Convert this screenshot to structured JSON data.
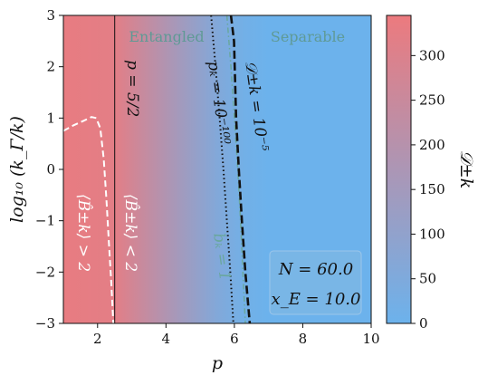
{
  "chart_data": {
    "type": "heatmap",
    "xlabel": "p",
    "ylabel": "log₁₀ (k_Γ/k)",
    "xlim": [
      1,
      10
    ],
    "ylim": [
      -3,
      3
    ],
    "x_ticks": [
      2,
      4,
      6,
      8,
      10
    ],
    "y_ticks": [
      -3,
      -2,
      -1,
      0,
      1,
      2,
      3
    ],
    "colorbar": {
      "label": "𝒟±k",
      "range": [
        0,
        345
      ],
      "ticks": [
        0,
        50,
        100,
        150,
        200,
        250,
        300
      ],
      "colors": {
        "low": "#6cb2ec",
        "high": "#ec7a7e"
      }
    },
    "colormap_profile": [
      {
        "p": 1.0,
        "value": 335
      },
      {
        "p": 2.5,
        "value": 320
      },
      {
        "p": 3.5,
        "value": 230
      },
      {
        "p": 4.5,
        "value": 140
      },
      {
        "p": 5.5,
        "value": 60
      },
      {
        "p": 6.3,
        "value": 15
      },
      {
        "p": 7.0,
        "value": 0
      },
      {
        "p": 10.0,
        "value": 0
      }
    ],
    "contours": [
      {
        "id": "p-vertical",
        "label": "p = 5/2",
        "style": "solid-thin",
        "color": "#111111",
        "points": [
          [
            2.5,
            -3
          ],
          [
            2.5,
            3
          ]
        ]
      },
      {
        "id": "bhat-2",
        "label_left": "⟨B̂±k⟩ > 2",
        "label_right": "⟨B̂±k⟩ < 2",
        "style": "dashed",
        "color": "#ffffff",
        "points": [
          [
            1.0,
            0.75
          ],
          [
            1.3,
            0.86
          ],
          [
            1.6,
            0.95
          ],
          [
            1.82,
            1.02
          ],
          [
            1.96,
            1.0
          ],
          [
            2.08,
            0.8
          ],
          [
            2.18,
            0.2
          ],
          [
            2.26,
            -0.6
          ],
          [
            2.33,
            -1.4
          ],
          [
            2.4,
            -2.2
          ],
          [
            2.46,
            -3.0
          ]
        ]
      },
      {
        "id": "pk-contour",
        "label": "pₖ = 10⁻¹⁰⁰",
        "style": "dotted",
        "color": "#111111",
        "points": [
          [
            5.32,
            3.0
          ],
          [
            5.45,
            2.0
          ],
          [
            5.57,
            1.0
          ],
          [
            5.68,
            0.0
          ],
          [
            5.78,
            -1.0
          ],
          [
            5.88,
            -2.0
          ],
          [
            5.97,
            -3.0
          ]
        ]
      },
      {
        "id": "bk-contour",
        "label": "bₖ = 1",
        "style": "dash-dot",
        "color": "#6aa79e",
        "points": [
          [
            5.78,
            3.0
          ],
          [
            5.9,
            2.0
          ],
          [
            6.0,
            1.0
          ],
          [
            6.1,
            0.0
          ],
          [
            6.18,
            -1.0
          ],
          [
            6.25,
            -2.0
          ],
          [
            6.32,
            -3.0
          ]
        ]
      },
      {
        "id": "d-contour",
        "label": "𝒟±k = 10⁻⁵",
        "style": "dashed-thick",
        "color": "#111111",
        "points": [
          [
            5.9,
            3.0
          ],
          [
            5.99,
            2.5
          ],
          [
            6.05,
            1.0
          ],
          [
            6.13,
            0.0
          ],
          [
            6.22,
            -1.0
          ],
          [
            6.32,
            -2.0
          ],
          [
            6.45,
            -3.0
          ]
        ]
      }
    ],
    "region_labels": {
      "entangled": "Entangled",
      "separable": "Separable"
    },
    "parameters_box": {
      "N": "N = 60.0",
      "xE": "x_E = 10.0"
    }
  }
}
